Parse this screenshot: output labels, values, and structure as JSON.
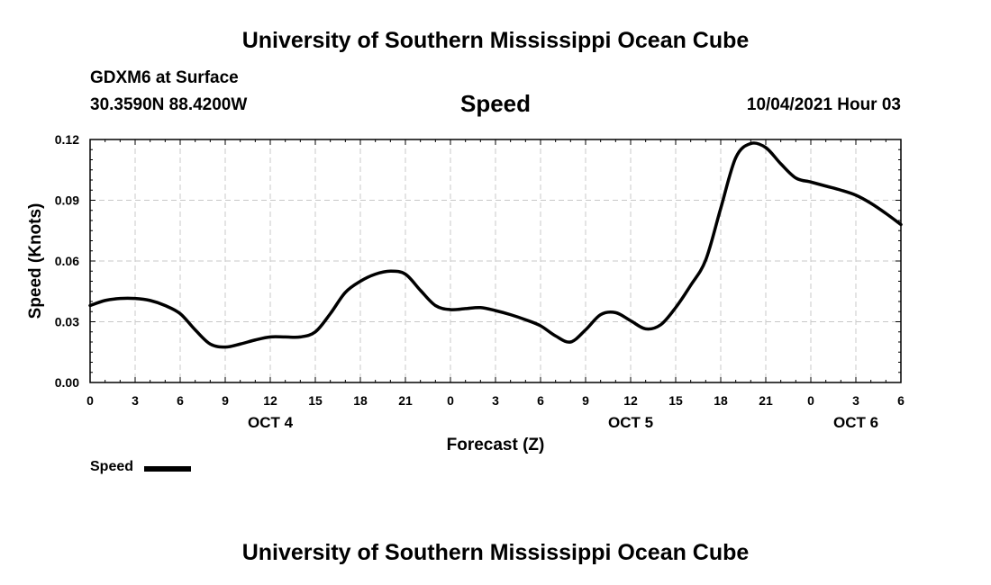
{
  "header": {
    "top_title": "University of Southern Mississippi Ocean Cube",
    "station": "GDXM6 at Surface",
    "coordinates": "30.3590N  88.4200W",
    "datetime": "10/04/2021 Hour 03",
    "bottom_title": "University of Southern Mississippi Ocean Cube"
  },
  "chart_data": {
    "type": "line",
    "title": "Speed",
    "xlabel": "Forecast (Z)",
    "ylabel": "Speed (Knots)",
    "ylim": [
      0,
      0.12
    ],
    "xlim": [
      0,
      54
    ],
    "yticks": [
      "0.00",
      "0.03",
      "0.06",
      "0.09",
      "0.12"
    ],
    "ytick_values": [
      0,
      0.03,
      0.06,
      0.09,
      0.12
    ],
    "xtick_labels": [
      "0",
      "3",
      "6",
      "9",
      "12",
      "15",
      "18",
      "21",
      "0",
      "3",
      "6",
      "9",
      "12",
      "15",
      "18",
      "21",
      "0",
      "3",
      "6"
    ],
    "day_labels": [
      {
        "label": "OCT 4",
        "hour": 12
      },
      {
        "label": "OCT 5",
        "hour": 36
      },
      {
        "label": "OCT 6",
        "hour": 51
      }
    ],
    "grid": true,
    "legend": "bottom-left",
    "line_color": "#000000",
    "series": [
      {
        "name": "Speed",
        "x": [
          0,
          1,
          2,
          3,
          4,
          5,
          6,
          7,
          8,
          9,
          10,
          11,
          12,
          13,
          14,
          15,
          16,
          17,
          18,
          19,
          20,
          21,
          22,
          23,
          24,
          25,
          26,
          27,
          28,
          29,
          30,
          31,
          32,
          33,
          34,
          35,
          36,
          37,
          38,
          39,
          40,
          41,
          42,
          43,
          44,
          45,
          46,
          47,
          48,
          49,
          50,
          51,
          52,
          53,
          54
        ],
        "values": [
          0.038,
          0.0405,
          0.0415,
          0.0415,
          0.0405,
          0.038,
          0.034,
          0.026,
          0.019,
          0.0175,
          0.019,
          0.021,
          0.0225,
          0.0225,
          0.0225,
          0.025,
          0.034,
          0.0445,
          0.05,
          0.0535,
          0.055,
          0.0535,
          0.0455,
          0.038,
          0.036,
          0.0365,
          0.037,
          0.0355,
          0.0335,
          0.031,
          0.028,
          0.023,
          0.02,
          0.026,
          0.0335,
          0.0345,
          0.0305,
          0.0265,
          0.0285,
          0.037,
          0.048,
          0.0605,
          0.086,
          0.111,
          0.118,
          0.116,
          0.108,
          0.101,
          0.099,
          0.097,
          0.095,
          0.0925,
          0.0885,
          0.0835,
          0.078
        ]
      }
    ]
  }
}
